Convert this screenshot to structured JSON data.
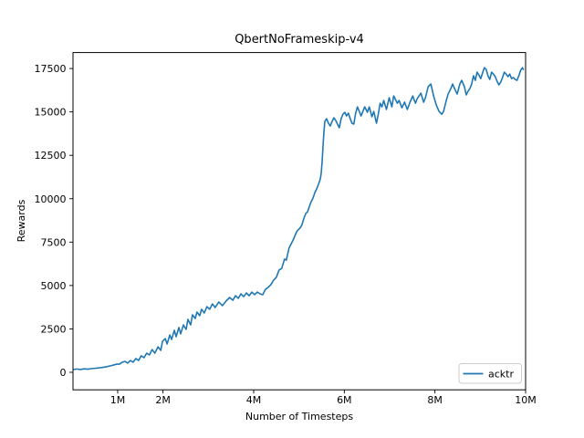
{
  "figure": {
    "background": "#ffffff",
    "text_color": "#000000"
  },
  "chart_data": {
    "type": "line",
    "title": "QbertNoFrameskip-v4",
    "xlabel": "Number of Timesteps",
    "ylabel": "Rewards",
    "x_unit": "millions of timesteps",
    "xlim": [
      0.014,
      10.0
    ],
    "ylim": [
      -1010,
      18420
    ],
    "grid": false,
    "legend": {
      "position": "lower right",
      "entries": [
        {
          "label": "acktr",
          "color": "#1f77b4"
        }
      ]
    },
    "xticks": {
      "values": [
        1,
        2,
        4,
        6,
        8,
        10
      ],
      "labels": [
        "1M",
        "2M",
        "4M",
        "6M",
        "8M",
        "10M"
      ]
    },
    "yticks": {
      "values": [
        0,
        2500,
        5000,
        7500,
        10000,
        12500,
        15000,
        17500
      ],
      "labels": [
        "0",
        "2500",
        "5000",
        "7500",
        "10000",
        "12500",
        "15000",
        "17500"
      ]
    },
    "series": [
      {
        "name": "acktr",
        "color": "#1f77b4",
        "points": [
          [
            0.01,
            150
          ],
          [
            0.09,
            190
          ],
          [
            0.18,
            160
          ],
          [
            0.26,
            200
          ],
          [
            0.34,
            180
          ],
          [
            0.42,
            210
          ],
          [
            0.5,
            230
          ],
          [
            0.58,
            250
          ],
          [
            0.66,
            280
          ],
          [
            0.74,
            310
          ],
          [
            0.82,
            360
          ],
          [
            0.9,
            410
          ],
          [
            0.98,
            470
          ],
          [
            1.04,
            470
          ],
          [
            1.1,
            580
          ],
          [
            1.16,
            630
          ],
          [
            1.22,
            530
          ],
          [
            1.28,
            680
          ],
          [
            1.34,
            580
          ],
          [
            1.4,
            790
          ],
          [
            1.46,
            680
          ],
          [
            1.52,
            950
          ],
          [
            1.58,
            840
          ],
          [
            1.64,
            1100
          ],
          [
            1.7,
            1000
          ],
          [
            1.76,
            1310
          ],
          [
            1.82,
            1100
          ],
          [
            1.89,
            1470
          ],
          [
            1.95,
            1260
          ],
          [
            1.99,
            1790
          ],
          [
            2.05,
            1940
          ],
          [
            2.09,
            1630
          ],
          [
            2.15,
            2150
          ],
          [
            2.19,
            1890
          ],
          [
            2.25,
            2420
          ],
          [
            2.29,
            2050
          ],
          [
            2.35,
            2580
          ],
          [
            2.39,
            2210
          ],
          [
            2.45,
            2730
          ],
          [
            2.51,
            2470
          ],
          [
            2.55,
            3050
          ],
          [
            2.61,
            2730
          ],
          [
            2.65,
            3310
          ],
          [
            2.71,
            3100
          ],
          [
            2.75,
            3470
          ],
          [
            2.81,
            3260
          ],
          [
            2.85,
            3630
          ],
          [
            2.91,
            3420
          ],
          [
            2.97,
            3780
          ],
          [
            3.03,
            3630
          ],
          [
            3.09,
            3940
          ],
          [
            3.15,
            3730
          ],
          [
            3.23,
            4050
          ],
          [
            3.31,
            3840
          ],
          [
            3.39,
            4100
          ],
          [
            3.47,
            4310
          ],
          [
            3.54,
            4150
          ],
          [
            3.6,
            4410
          ],
          [
            3.66,
            4260
          ],
          [
            3.72,
            4520
          ],
          [
            3.78,
            4360
          ],
          [
            3.84,
            4570
          ],
          [
            3.9,
            4410
          ],
          [
            3.96,
            4620
          ],
          [
            4.02,
            4470
          ],
          [
            4.08,
            4620
          ],
          [
            4.14,
            4520
          ],
          [
            4.2,
            4470
          ],
          [
            4.26,
            4780
          ],
          [
            4.32,
            4890
          ],
          [
            4.38,
            5050
          ],
          [
            4.44,
            5310
          ],
          [
            4.5,
            5470
          ],
          [
            4.56,
            5890
          ],
          [
            4.62,
            5990
          ],
          [
            4.68,
            6520
          ],
          [
            4.72,
            6460
          ],
          [
            4.78,
            7150
          ],
          [
            4.82,
            7360
          ],
          [
            4.88,
            7670
          ],
          [
            4.92,
            7930
          ],
          [
            4.96,
            8150
          ],
          [
            5.02,
            8300
          ],
          [
            5.06,
            8460
          ],
          [
            5.11,
            8880
          ],
          [
            5.15,
            9140
          ],
          [
            5.19,
            9250
          ],
          [
            5.23,
            9560
          ],
          [
            5.27,
            9830
          ],
          [
            5.31,
            10040
          ],
          [
            5.35,
            10350
          ],
          [
            5.39,
            10560
          ],
          [
            5.43,
            10830
          ],
          [
            5.47,
            11140
          ],
          [
            5.49,
            11460
          ],
          [
            5.51,
            12090
          ],
          [
            5.53,
            13030
          ],
          [
            5.55,
            13820
          ],
          [
            5.57,
            14450
          ],
          [
            5.61,
            14610
          ],
          [
            5.65,
            14350
          ],
          [
            5.69,
            14190
          ],
          [
            5.73,
            14450
          ],
          [
            5.77,
            14660
          ],
          [
            5.81,
            14510
          ],
          [
            5.85,
            14300
          ],
          [
            5.89,
            14090
          ],
          [
            5.93,
            14610
          ],
          [
            5.97,
            14870
          ],
          [
            6.01,
            14980
          ],
          [
            6.05,
            14770
          ],
          [
            6.09,
            14930
          ],
          [
            6.13,
            14610
          ],
          [
            6.17,
            14350
          ],
          [
            6.21,
            14300
          ],
          [
            6.25,
            14930
          ],
          [
            6.29,
            15290
          ],
          [
            6.33,
            15030
          ],
          [
            6.37,
            14770
          ],
          [
            6.41,
            15030
          ],
          [
            6.45,
            15290
          ],
          [
            6.51,
            14980
          ],
          [
            6.55,
            15290
          ],
          [
            6.61,
            14720
          ],
          [
            6.65,
            15030
          ],
          [
            6.71,
            14350
          ],
          [
            6.75,
            14870
          ],
          [
            6.79,
            15500
          ],
          [
            6.83,
            15290
          ],
          [
            6.87,
            15660
          ],
          [
            6.93,
            15140
          ],
          [
            6.99,
            15820
          ],
          [
            7.05,
            15290
          ],
          [
            7.09,
            15920
          ],
          [
            7.17,
            15500
          ],
          [
            7.21,
            15660
          ],
          [
            7.27,
            15240
          ],
          [
            7.33,
            15560
          ],
          [
            7.39,
            15140
          ],
          [
            7.45,
            15560
          ],
          [
            7.51,
            15920
          ],
          [
            7.57,
            15500
          ],
          [
            7.61,
            15770
          ],
          [
            7.69,
            16080
          ],
          [
            7.75,
            15560
          ],
          [
            7.79,
            15820
          ],
          [
            7.85,
            16450
          ],
          [
            7.91,
            16610
          ],
          [
            7.97,
            15920
          ],
          [
            8.03,
            15400
          ],
          [
            8.09,
            15030
          ],
          [
            8.15,
            14870
          ],
          [
            8.19,
            15030
          ],
          [
            8.25,
            15660
          ],
          [
            8.29,
            16030
          ],
          [
            8.35,
            16340
          ],
          [
            8.39,
            16610
          ],
          [
            8.45,
            16240
          ],
          [
            8.49,
            16030
          ],
          [
            8.55,
            16610
          ],
          [
            8.59,
            16820
          ],
          [
            8.65,
            16450
          ],
          [
            8.69,
            15980
          ],
          [
            8.73,
            16190
          ],
          [
            8.77,
            16340
          ],
          [
            8.81,
            16610
          ],
          [
            8.85,
            17080
          ],
          [
            8.89,
            16820
          ],
          [
            8.93,
            17290
          ],
          [
            8.97,
            17130
          ],
          [
            9.01,
            16920
          ],
          [
            9.05,
            17240
          ],
          [
            9.09,
            17550
          ],
          [
            9.13,
            17450
          ],
          [
            9.17,
            17080
          ],
          [
            9.21,
            16870
          ],
          [
            9.25,
            17290
          ],
          [
            9.29,
            17180
          ],
          [
            9.33,
            17030
          ],
          [
            9.37,
            16770
          ],
          [
            9.41,
            16560
          ],
          [
            9.45,
            16710
          ],
          [
            9.49,
            16980
          ],
          [
            9.53,
            17290
          ],
          [
            9.57,
            17180
          ],
          [
            9.61,
            17030
          ],
          [
            9.65,
            17180
          ],
          [
            9.69,
            16920
          ],
          [
            9.73,
            16980
          ],
          [
            9.77,
            16870
          ],
          [
            9.81,
            16820
          ],
          [
            9.85,
            17080
          ],
          [
            9.89,
            17390
          ],
          [
            9.93,
            17550
          ],
          [
            9.95,
            17450
          ]
        ]
      }
    ]
  }
}
